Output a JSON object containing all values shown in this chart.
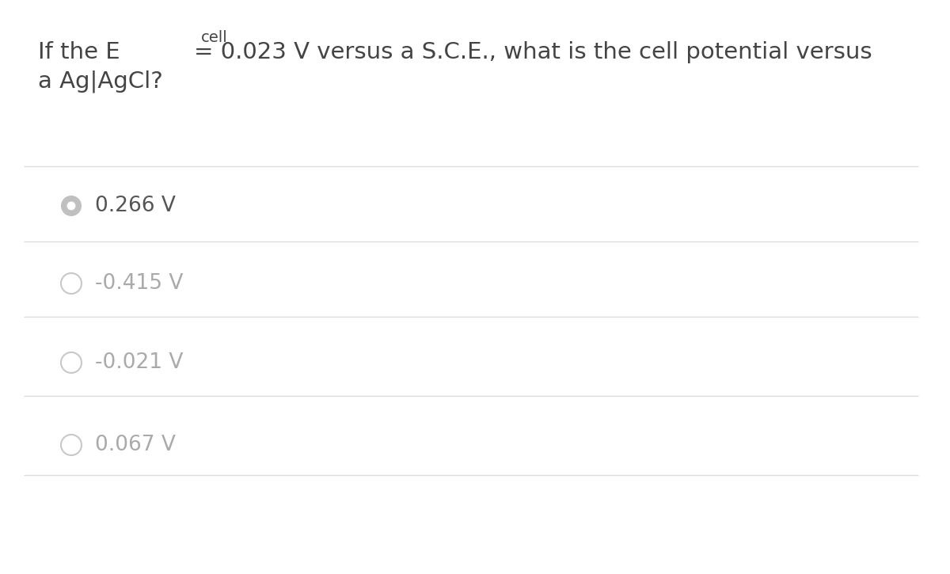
{
  "background_color": "#ffffff",
  "question_text_color": "#444444",
  "option_text_color": "#aaaaaa",
  "option_text_color_selected": "#555555",
  "divider_color": "#dddddd",
  "circle_selected_fill": "#c0c0c0",
  "circle_selected_edge": "#c0c0c0",
  "circle_unselected_fill": "#ffffff",
  "circle_unselected_edge": "#c8c8c8",
  "options": [
    "0.266 V",
    "-0.415 V",
    "-0.021 V",
    "0.067 V"
  ],
  "selected_index": 0,
  "question_fontsize": 21,
  "option_fontsize": 19,
  "sub_fontsize": 14
}
